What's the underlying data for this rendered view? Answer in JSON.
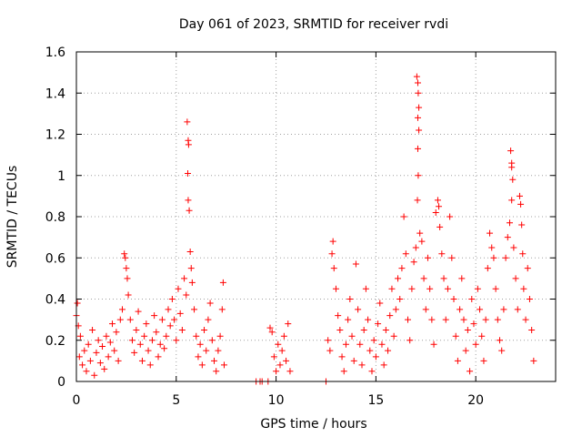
{
  "chart_data": {
    "type": "scatter",
    "title": "Day 061 of 2023, SRMTID for receiver rvdi",
    "xlabel": "GPS time / hours",
    "ylabel": "SRMTID / TECUs",
    "xlim": [
      0,
      24
    ],
    "ylim": [
      0,
      1.6
    ],
    "xticks": [
      0,
      5,
      10,
      15,
      20
    ],
    "xtick_labels": [
      "0",
      "5",
      "10",
      "15",
      "20"
    ],
    "yticks": [
      0,
      0.2,
      0.4,
      0.6,
      0.8,
      1,
      1.2,
      1.4,
      1.6
    ],
    "ytick_labels": [
      "0",
      "0.2",
      "0.4",
      "0.6",
      "0.8",
      "1",
      "1.2",
      "1.4",
      "1.6"
    ],
    "grid": true,
    "marker": "+",
    "colors": {
      "points": "#ff0000",
      "grid": "#a0a0a0",
      "axis": "#000000"
    },
    "series": [
      {
        "name": "SRMTID",
        "points": [
          [
            0.0,
            0.32
          ],
          [
            0.05,
            0.38
          ],
          [
            0.1,
            0.27
          ],
          [
            0.15,
            0.12
          ],
          [
            0.2,
            0.22
          ],
          [
            0.3,
            0.08
          ],
          [
            0.4,
            0.15
          ],
          [
            0.5,
            0.05
          ],
          [
            0.6,
            0.18
          ],
          [
            0.7,
            0.1
          ],
          [
            0.8,
            0.25
          ],
          [
            0.9,
            0.03
          ],
          [
            1.0,
            0.14
          ],
          [
            1.1,
            0.2
          ],
          [
            1.2,
            0.09
          ],
          [
            1.3,
            0.17
          ],
          [
            1.4,
            0.06
          ],
          [
            1.5,
            0.22
          ],
          [
            1.6,
            0.12
          ],
          [
            1.7,
            0.19
          ],
          [
            1.8,
            0.28
          ],
          [
            1.9,
            0.15
          ],
          [
            2.0,
            0.24
          ],
          [
            2.1,
            0.1
          ],
          [
            2.2,
            0.3
          ],
          [
            2.3,
            0.35
          ],
          [
            2.4,
            0.62
          ],
          [
            2.45,
            0.6
          ],
          [
            2.5,
            0.55
          ],
          [
            2.55,
            0.5
          ],
          [
            2.6,
            0.42
          ],
          [
            2.7,
            0.3
          ],
          [
            2.8,
            0.2
          ],
          [
            2.9,
            0.14
          ],
          [
            3.0,
            0.25
          ],
          [
            3.1,
            0.34
          ],
          [
            3.2,
            0.18
          ],
          [
            3.3,
            0.1
          ],
          [
            3.4,
            0.22
          ],
          [
            3.5,
            0.28
          ],
          [
            3.6,
            0.15
          ],
          [
            3.7,
            0.08
          ],
          [
            3.8,
            0.2
          ],
          [
            3.9,
            0.32
          ],
          [
            4.0,
            0.24
          ],
          [
            4.1,
            0.12
          ],
          [
            4.2,
            0.18
          ],
          [
            4.3,
            0.3
          ],
          [
            4.4,
            0.16
          ],
          [
            4.5,
            0.22
          ],
          [
            4.6,
            0.35
          ],
          [
            4.7,
            0.27
          ],
          [
            4.8,
            0.4
          ],
          [
            4.9,
            0.3
          ],
          [
            5.0,
            0.2
          ],
          [
            5.1,
            0.45
          ],
          [
            5.2,
            0.33
          ],
          [
            5.3,
            0.25
          ],
          [
            5.4,
            0.5
          ],
          [
            5.5,
            0.42
          ],
          [
            5.55,
            1.26
          ],
          [
            5.6,
            1.17
          ],
          [
            5.62,
            1.15
          ],
          [
            5.58,
            1.01
          ],
          [
            5.6,
            0.88
          ],
          [
            5.65,
            0.83
          ],
          [
            5.7,
            0.63
          ],
          [
            5.75,
            0.55
          ],
          [
            5.8,
            0.48
          ],
          [
            5.9,
            0.35
          ],
          [
            6.0,
            0.22
          ],
          [
            6.1,
            0.12
          ],
          [
            6.2,
            0.18
          ],
          [
            6.3,
            0.08
          ],
          [
            6.4,
            0.25
          ],
          [
            6.5,
            0.15
          ],
          [
            6.6,
            0.3
          ],
          [
            6.7,
            0.38
          ],
          [
            6.8,
            0.2
          ],
          [
            6.9,
            0.1
          ],
          [
            7.0,
            0.05
          ],
          [
            7.1,
            0.15
          ],
          [
            7.2,
            0.22
          ],
          [
            7.3,
            0.35
          ],
          [
            7.35,
            0.48
          ],
          [
            7.4,
            0.08
          ],
          [
            9.0,
            0.0
          ],
          [
            9.2,
            0.0
          ],
          [
            9.3,
            0.0
          ],
          [
            9.6,
            0.0
          ],
          [
            9.7,
            0.26
          ],
          [
            9.8,
            0.24
          ],
          [
            9.9,
            0.12
          ],
          [
            10.0,
            0.05
          ],
          [
            10.1,
            0.18
          ],
          [
            10.2,
            0.08
          ],
          [
            10.3,
            0.15
          ],
          [
            10.4,
            0.22
          ],
          [
            10.5,
            0.1
          ],
          [
            10.6,
            0.28
          ],
          [
            10.7,
            0.05
          ],
          [
            12.5,
            0.0
          ],
          [
            12.6,
            0.2
          ],
          [
            12.7,
            0.15
          ],
          [
            12.8,
            0.62
          ],
          [
            12.85,
            0.68
          ],
          [
            12.9,
            0.55
          ],
          [
            13.0,
            0.45
          ],
          [
            13.1,
            0.32
          ],
          [
            13.2,
            0.25
          ],
          [
            13.3,
            0.12
          ],
          [
            13.4,
            0.05
          ],
          [
            13.5,
            0.18
          ],
          [
            13.6,
            0.3
          ],
          [
            13.7,
            0.4
          ],
          [
            13.8,
            0.22
          ],
          [
            13.9,
            0.1
          ],
          [
            14.0,
            0.57
          ],
          [
            14.1,
            0.35
          ],
          [
            14.2,
            0.18
          ],
          [
            14.3,
            0.08
          ],
          [
            14.4,
            0.25
          ],
          [
            14.5,
            0.45
          ],
          [
            14.6,
            0.3
          ],
          [
            14.7,
            0.15
          ],
          [
            14.8,
            0.05
          ],
          [
            14.9,
            0.2
          ],
          [
            15.0,
            0.12
          ],
          [
            15.1,
            0.28
          ],
          [
            15.2,
            0.38
          ],
          [
            15.3,
            0.18
          ],
          [
            15.4,
            0.08
          ],
          [
            15.5,
            0.25
          ],
          [
            15.6,
            0.15
          ],
          [
            15.7,
            0.32
          ],
          [
            15.8,
            0.45
          ],
          [
            15.9,
            0.22
          ],
          [
            16.0,
            0.35
          ],
          [
            16.1,
            0.5
          ],
          [
            16.2,
            0.4
          ],
          [
            16.3,
            0.55
          ],
          [
            16.4,
            0.8
          ],
          [
            16.5,
            0.62
          ],
          [
            16.6,
            0.3
          ],
          [
            16.7,
            0.2
          ],
          [
            16.8,
            0.45
          ],
          [
            16.9,
            0.58
          ],
          [
            17.0,
            0.65
          ],
          [
            17.05,
            1.48
          ],
          [
            17.1,
            1.45
          ],
          [
            17.12,
            1.4
          ],
          [
            17.15,
            1.33
          ],
          [
            17.1,
            1.28
          ],
          [
            17.15,
            1.22
          ],
          [
            17.1,
            1.13
          ],
          [
            17.12,
            1.0
          ],
          [
            17.08,
            0.88
          ],
          [
            17.2,
            0.72
          ],
          [
            17.3,
            0.68
          ],
          [
            17.4,
            0.5
          ],
          [
            17.5,
            0.35
          ],
          [
            17.6,
            0.6
          ],
          [
            17.7,
            0.45
          ],
          [
            17.8,
            0.3
          ],
          [
            17.9,
            0.18
          ],
          [
            18.0,
            0.82
          ],
          [
            18.1,
            0.88
          ],
          [
            18.15,
            0.85
          ],
          [
            18.2,
            0.75
          ],
          [
            18.3,
            0.62
          ],
          [
            18.4,
            0.5
          ],
          [
            18.5,
            0.3
          ],
          [
            18.6,
            0.45
          ],
          [
            18.7,
            0.8
          ],
          [
            18.8,
            0.6
          ],
          [
            18.9,
            0.4
          ],
          [
            19.0,
            0.22
          ],
          [
            19.1,
            0.1
          ],
          [
            19.2,
            0.35
          ],
          [
            19.3,
            0.5
          ],
          [
            19.4,
            0.3
          ],
          [
            19.5,
            0.15
          ],
          [
            19.6,
            0.25
          ],
          [
            19.7,
            0.05
          ],
          [
            19.8,
            0.4
          ],
          [
            19.9,
            0.28
          ],
          [
            20.0,
            0.18
          ],
          [
            20.1,
            0.45
          ],
          [
            20.2,
            0.35
          ],
          [
            20.3,
            0.22
          ],
          [
            20.4,
            0.1
          ],
          [
            20.5,
            0.3
          ],
          [
            20.6,
            0.55
          ],
          [
            20.7,
            0.72
          ],
          [
            20.8,
            0.65
          ],
          [
            20.9,
            0.6
          ],
          [
            21.0,
            0.45
          ],
          [
            21.1,
            0.3
          ],
          [
            21.2,
            0.2
          ],
          [
            21.3,
            0.15
          ],
          [
            21.4,
            0.35
          ],
          [
            21.5,
            0.6
          ],
          [
            21.6,
            0.7
          ],
          [
            21.7,
            0.77
          ],
          [
            21.75,
            1.12
          ],
          [
            21.8,
            1.06
          ],
          [
            21.8,
            1.04
          ],
          [
            21.85,
            0.98
          ],
          [
            21.8,
            0.88
          ],
          [
            21.9,
            0.65
          ],
          [
            22.0,
            0.5
          ],
          [
            22.1,
            0.35
          ],
          [
            22.2,
            0.9
          ],
          [
            22.25,
            0.86
          ],
          [
            22.3,
            0.76
          ],
          [
            22.35,
            0.62
          ],
          [
            22.4,
            0.45
          ],
          [
            22.5,
            0.3
          ],
          [
            22.6,
            0.55
          ],
          [
            22.7,
            0.4
          ],
          [
            22.8,
            0.25
          ],
          [
            22.9,
            0.1
          ]
        ]
      }
    ]
  }
}
